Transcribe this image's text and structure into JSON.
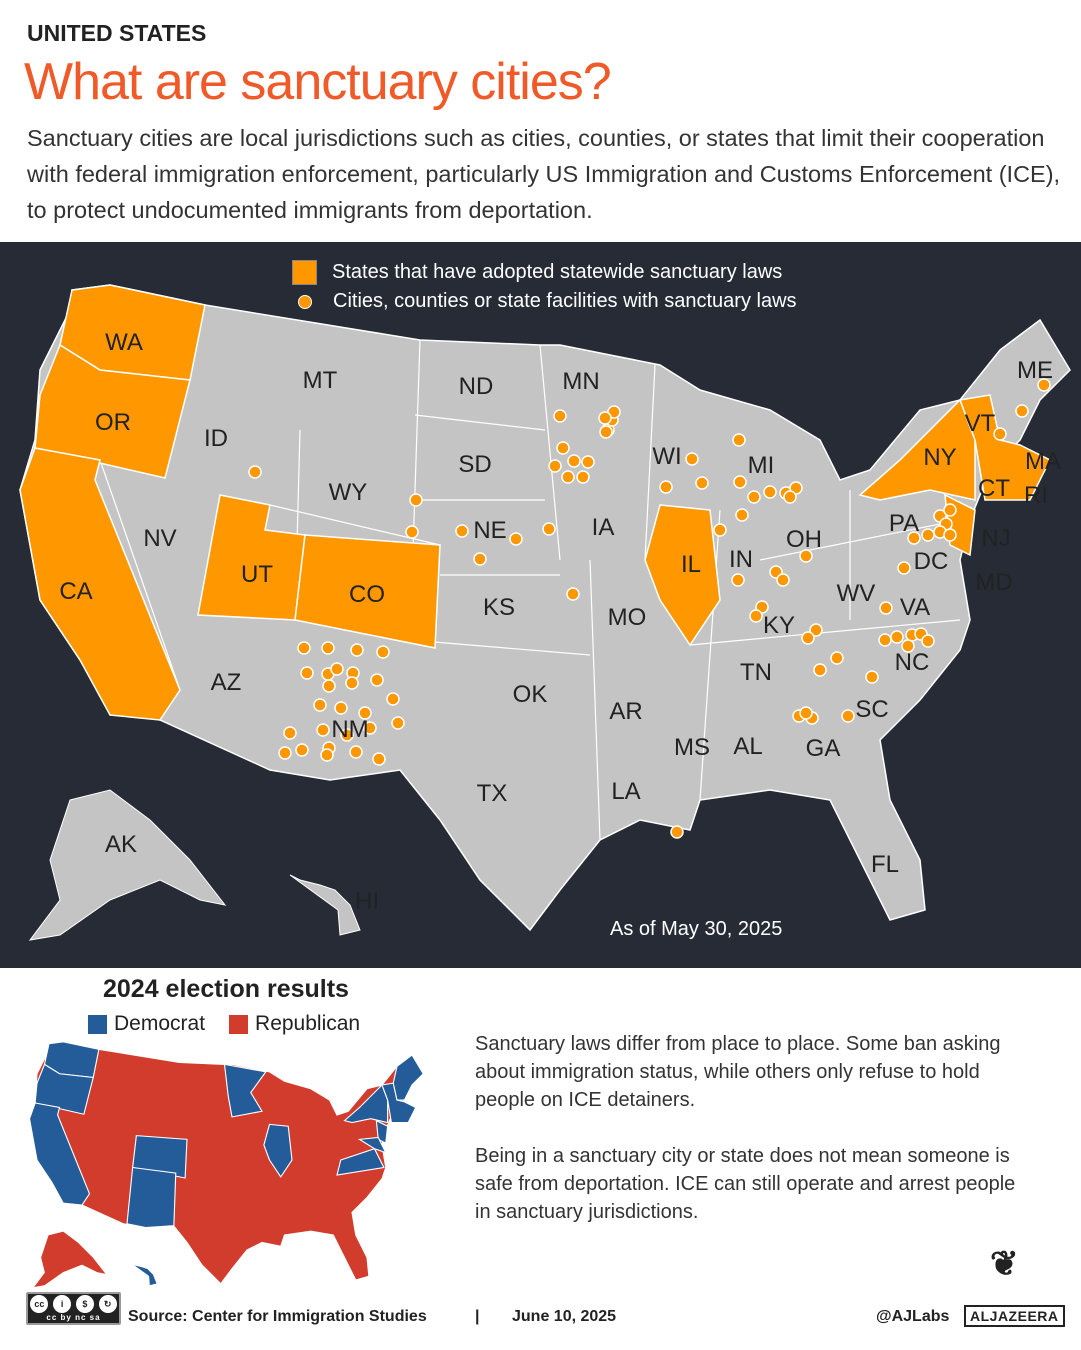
{
  "header": {
    "kicker": "UNITED STATES",
    "title": "What are sanctuary cities?",
    "intro": "Sanctuary cities are local jurisdictions such as cities, counties, or states that limit their cooperation with federal immigration enforcement, particularly US Immigration and Customs Enforcement (ICE), to protect undocumented immigrants from deportation."
  },
  "map": {
    "legend": {
      "states": "States that have adopted statewide sanctuary laws",
      "cities": "Cities, counties or state facilities with sanctuary laws"
    },
    "as_of": "As of May 30, 2025",
    "colors": {
      "background": "#262b36",
      "state": "#c4c4c4",
      "sanctuary": "#ff9800",
      "border": "#ffffff"
    },
    "sanctuary_states": [
      "WA",
      "OR",
      "CA",
      "UT",
      "CO",
      "IL",
      "NY",
      "VT",
      "MA",
      "CT",
      "RI",
      "NJ"
    ],
    "state_labels": [
      "WA",
      "OR",
      "CA",
      "ID",
      "NV",
      "MT",
      "WY",
      "UT",
      "CO",
      "AZ",
      "NM",
      "ND",
      "SD",
      "NE",
      "KS",
      "OK",
      "TX",
      "MN",
      "IA",
      "MO",
      "AR",
      "LA",
      "WI",
      "IL",
      "MI",
      "IN",
      "OH",
      "KY",
      "TN",
      "MS",
      "AL",
      "GA",
      "FL",
      "SC",
      "NC",
      "VA",
      "WV",
      "PA",
      "NY",
      "VT",
      "ME",
      "MA",
      "CT",
      "RI",
      "NJ",
      "DC",
      "MD",
      "AK",
      "HI"
    ]
  },
  "election": {
    "title": "2024 election results",
    "democrat": "Democrat",
    "republican": "Republican",
    "colors": {
      "democrat": "#245c9a",
      "republican": "#d23c2d"
    }
  },
  "notes": [
    "Sanctuary laws differ from place to place. Some ban asking about immigration status, while others only refuse to hold people on ICE detainers.",
    "Being in a sanctuary city or state does not mean someone is safe from deportation. ICE can still operate and arrest people in sanctuary jurisdictions."
  ],
  "footer": {
    "license": "cc by nc sa",
    "source": "Source:  Center for Immigration Studies",
    "separator": "|",
    "date": "June 10, 2025",
    "handle": "@AJLabs",
    "logo": "ALJAZEERA"
  }
}
